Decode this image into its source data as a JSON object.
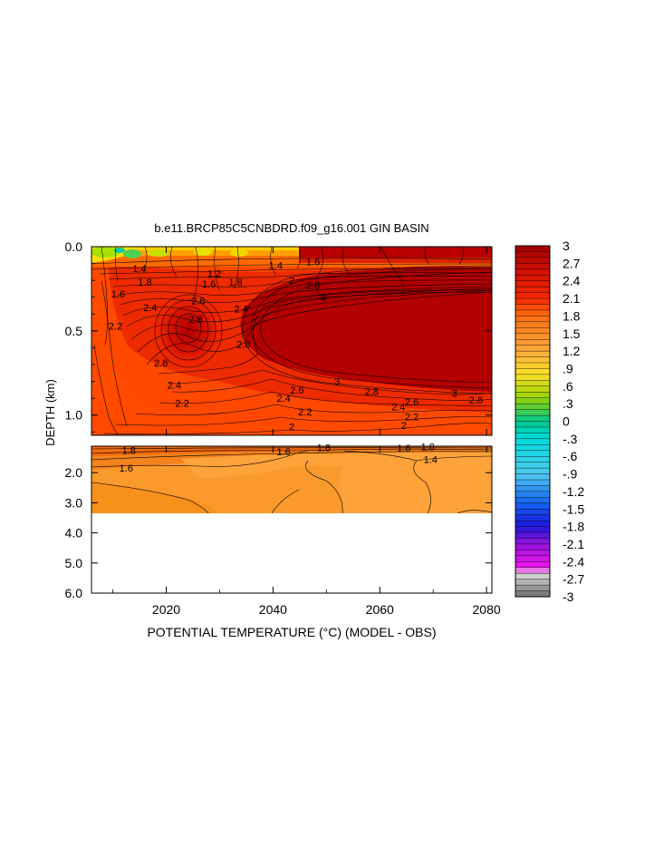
{
  "chart_data": {
    "type": "heatmap",
    "title": "b.e11.BRCP85C5CNBDRD.f09_g16.001 GIN BASIN",
    "xlabel": "POTENTIAL TEMPERATURE (°C) (MODEL - OBS)",
    "ylabel": "DEPTH (km)",
    "x_ticks": [
      "2020",
      "2040",
      "2060",
      "2080"
    ],
    "x_tick_values": [
      2020,
      2040,
      2060,
      2080
    ],
    "xlim": [
      2006,
      2081
    ],
    "upper_panel": {
      "ylim": [
        0.0,
        1.12
      ],
      "y_ticks": [
        "0.0",
        "0.5",
        "1.0"
      ],
      "y_tick_values": [
        0.0,
        0.5,
        1.0
      ]
    },
    "lower_panel": {
      "ylim": [
        1.12,
        6.0
      ],
      "y_ticks": [
        "2.0",
        "3.0",
        "4.0",
        "5.0",
        "6.0"
      ],
      "y_tick_values": [
        2.0,
        3.0,
        4.0,
        5.0,
        6.0
      ],
      "data_bottom_depth": 3.35
    },
    "colorbar": {
      "min": -3,
      "max": 3,
      "step": 0.1,
      "labels": [
        "3",
        "2.7",
        "2.4",
        "2.1",
        "1.8",
        "1.5",
        "1.2",
        ".9",
        ".6",
        ".3",
        "0",
        "-.3",
        "-.6",
        "-.9",
        "-1.2",
        "-1.5",
        "-1.8",
        "-2.1",
        "-2.4",
        "-2.7",
        "-3"
      ],
      "label_values": [
        3,
        2.7,
        2.4,
        2.1,
        1.8,
        1.5,
        1.2,
        0.9,
        0.6,
        0.3,
        0,
        -0.3,
        -0.6,
        -0.9,
        -1.2,
        -1.5,
        -1.8,
        -2.1,
        -2.4,
        -2.7,
        -3
      ]
    },
    "contour_labels": {
      "upper": [
        {
          "text": "2.2",
          "x": 2010.5,
          "y": 0.47
        },
        {
          "text": "1.6",
          "x": 2011,
          "y": 0.28
        },
        {
          "text": "1.4",
          "x": 2015,
          "y": 0.13
        },
        {
          "text": "1.8",
          "x": 2016,
          "y": 0.21
        },
        {
          "text": "2.4",
          "x": 2017,
          "y": 0.36
        },
        {
          "text": "2.6",
          "x": 2026,
          "y": 0.32
        },
        {
          "text": "2.8",
          "x": 2025.5,
          "y": 0.43
        },
        {
          "text": "1.6",
          "x": 2028,
          "y": 0.22
        },
        {
          "text": "1.2",
          "x": 2029,
          "y": 0.16
        },
        {
          "text": "1.8",
          "x": 2033,
          "y": 0.21
        },
        {
          "text": "2.4",
          "x": 2034,
          "y": 0.37
        },
        {
          "text": "2.8",
          "x": 2034.5,
          "y": 0.58
        },
        {
          "text": "1.4",
          "x": 2040.5,
          "y": 0.11
        },
        {
          "text": "2",
          "x": 2043.5,
          "y": 0.2
        },
        {
          "text": "2.8",
          "x": 2047.5,
          "y": 0.23
        },
        {
          "text": "3",
          "x": 2049.5,
          "y": 0.3
        },
        {
          "text": "1.6",
          "x": 2047.5,
          "y": 0.09
        },
        {
          "text": "2.8",
          "x": 2019,
          "y": 0.69
        },
        {
          "text": "2.4",
          "x": 2021.5,
          "y": 0.82
        },
        {
          "text": "2.2",
          "x": 2023,
          "y": 0.93
        },
        {
          "text": "2.6",
          "x": 2044.5,
          "y": 0.85
        },
        {
          "text": "2.4",
          "x": 2042,
          "y": 0.9
        },
        {
          "text": "2.2",
          "x": 2046,
          "y": 0.98
        },
        {
          "text": "2",
          "x": 2043.5,
          "y": 1.07
        },
        {
          "text": "3",
          "x": 2052,
          "y": 0.8
        },
        {
          "text": "2.8",
          "x": 2058.5,
          "y": 0.86
        },
        {
          "text": "2.6",
          "x": 2066,
          "y": 0.92
        },
        {
          "text": "2.4",
          "x": 2063.5,
          "y": 0.95
        },
        {
          "text": "2.2",
          "x": 2066,
          "y": 1.01
        },
        {
          "text": "2",
          "x": 2064.5,
          "y": 1.06
        },
        {
          "text": "3",
          "x": 2074,
          "y": 0.87
        },
        {
          "text": "2.8",
          "x": 2078,
          "y": 0.91
        }
      ],
      "lower": [
        {
          "text": "1.8",
          "x": 2013,
          "y": 1.25
        },
        {
          "text": "1.6",
          "x": 2042,
          "y": 1.3
        },
        {
          "text": "1.8",
          "x": 2049.5,
          "y": 1.17
        },
        {
          "text": "1.6",
          "x": 2064.5,
          "y": 1.18
        },
        {
          "text": "1.8",
          "x": 2069,
          "y": 1.14
        },
        {
          "text": "1.4",
          "x": 2069.5,
          "y": 1.55
        },
        {
          "text": "1.6",
          "x": 2012.5,
          "y": 1.85
        }
      ]
    }
  }
}
